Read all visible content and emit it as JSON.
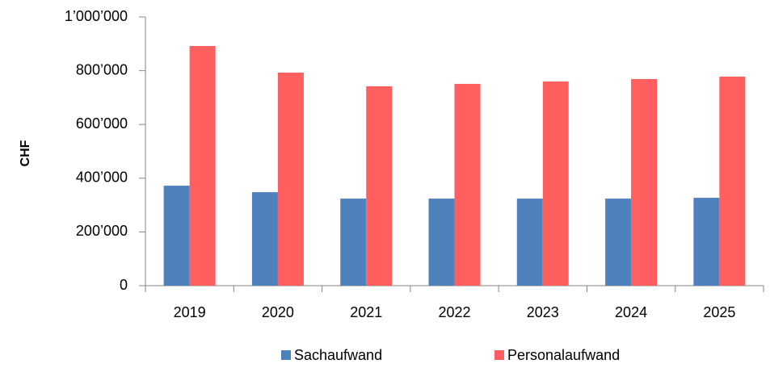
{
  "chart_data": {
    "type": "bar",
    "y_label": "CHF",
    "categories": [
      "2019",
      "2020",
      "2021",
      "2022",
      "2023",
      "2024",
      "2025"
    ],
    "series": [
      {
        "name": "Sachaufwand",
        "color": "#4f81bd",
        "values": [
          372000,
          348000,
          324000,
          324000,
          324000,
          324000,
          327000
        ]
      },
      {
        "name": "Personalaufwand",
        "color": "#ff5f5f",
        "values": [
          892000,
          793000,
          742000,
          751000,
          760000,
          769000,
          778000
        ]
      }
    ],
    "ylim": [
      0,
      1000000
    ],
    "yticks": [
      0,
      {
        "value": 200000,
        "label": "200’000"
      },
      {
        "value": 400000,
        "label": "400’000"
      },
      {
        "value": 600000,
        "label": "600’000"
      },
      {
        "value": 800000,
        "label": "800’000"
      },
      {
        "value": 1000000,
        "label": "1’000’000"
      }
    ],
    "grid": false,
    "legend": "bottom"
  }
}
